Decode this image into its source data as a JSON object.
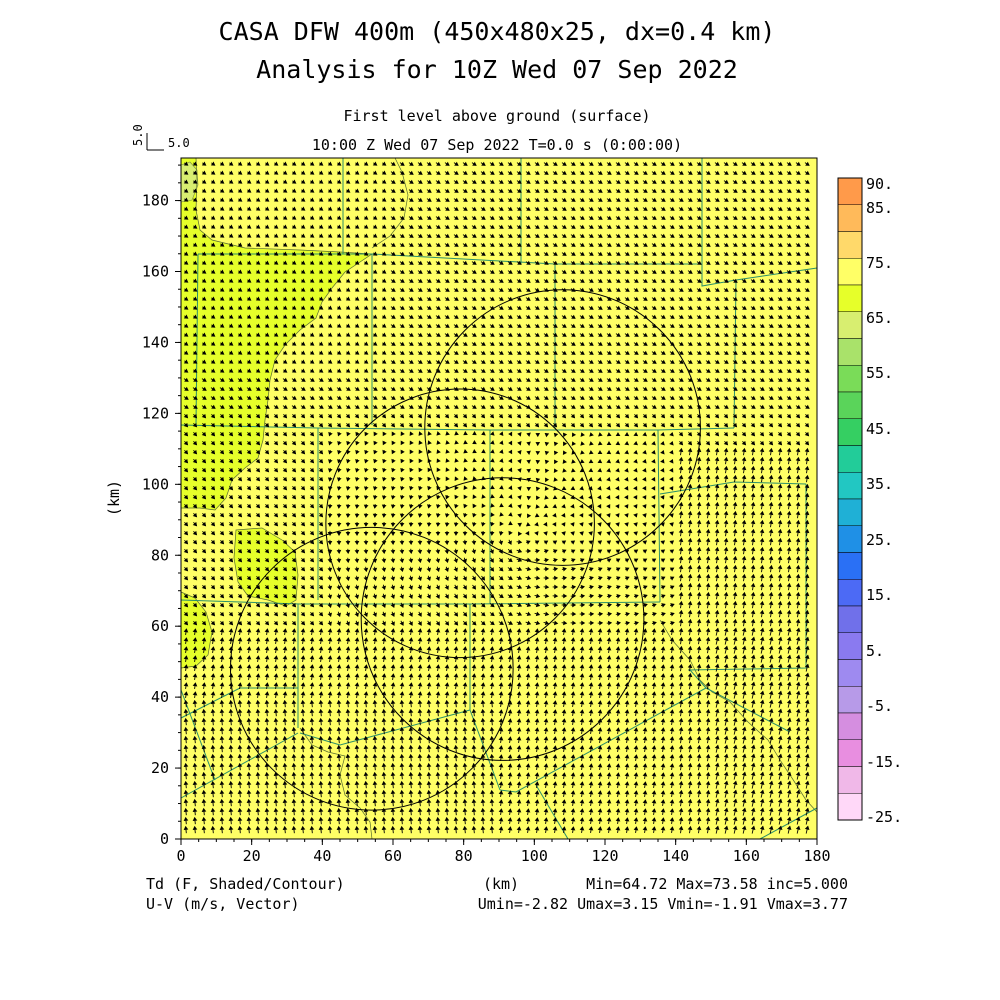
{
  "title": {
    "line1": "CASA DFW 400m (450x480x25, dx=0.4 km)",
    "line2": "Analysis for 10Z Wed 07 Sep 2022"
  },
  "subtitle": {
    "level": "First level above ground (surface)",
    "time": "10:00 Z Wed 07 Sep 2022    T=0.0 s (0:00:00)"
  },
  "vector_ref": {
    "vertical": "5.0",
    "horizontal": "5.0"
  },
  "chart_data": {
    "type": "heatmap",
    "x": {
      "label": "(km)",
      "range": [
        0,
        180
      ],
      "ticks": [
        0,
        20,
        40,
        60,
        80,
        100,
        120,
        140,
        160,
        180
      ]
    },
    "y": {
      "label": "(km)",
      "range": [
        0,
        192
      ],
      "ticks": [
        0,
        20,
        40,
        60,
        80,
        100,
        120,
        140,
        160,
        180
      ]
    },
    "field": "Td (F, Shaded/Contour)",
    "vectors": "U-V (m/s, Vector)",
    "stats": {
      "line1": "Min=64.72 Max=73.58 inc=5.000",
      "line2": "Umin=-2.82 Umax=3.15 Vmin=-1.91 Vmax=3.77"
    },
    "colorbar": {
      "labels": [
        "90.",
        "85.",
        "75.",
        "65.",
        "55.",
        "45.",
        "35.",
        "25.",
        "15.",
        "5.",
        "-5.",
        "-15.",
        "-25."
      ],
      "colors": [
        "#ff9a4a",
        "#ffba5a",
        "#ffd96a",
        "#ffff66",
        "#e6ff2a",
        "#d8ee70",
        "#a9e26a",
        "#7adc58",
        "#5ad45a",
        "#35cf62",
        "#22cc99",
        "#22c7c2",
        "#1fb0d6",
        "#1f90e6",
        "#2a70f5",
        "#4c6af5",
        "#7070ea",
        "#8a7af0",
        "#9e8af0",
        "#b79ae8",
        "#d58ee0",
        "#e88ee0",
        "#f0b8e8",
        "#ffd8f8"
      ]
    },
    "radar_circles": [
      {
        "cx": 108,
        "cy": 116,
        "r": 39
      },
      {
        "cx": 79,
        "cy": 89,
        "r": 38
      },
      {
        "cx": 91,
        "cy": 62,
        "r": 40
      },
      {
        "cx": 54,
        "cy": 48,
        "r": 40
      }
    ],
    "colors": {
      "background": "#ffff66",
      "moist_region": "#e6ff2a",
      "dry_spot": "#d8ee70",
      "boundaries": "#2a8f6a",
      "vectors": "#000000",
      "circles": "#000000"
    }
  }
}
